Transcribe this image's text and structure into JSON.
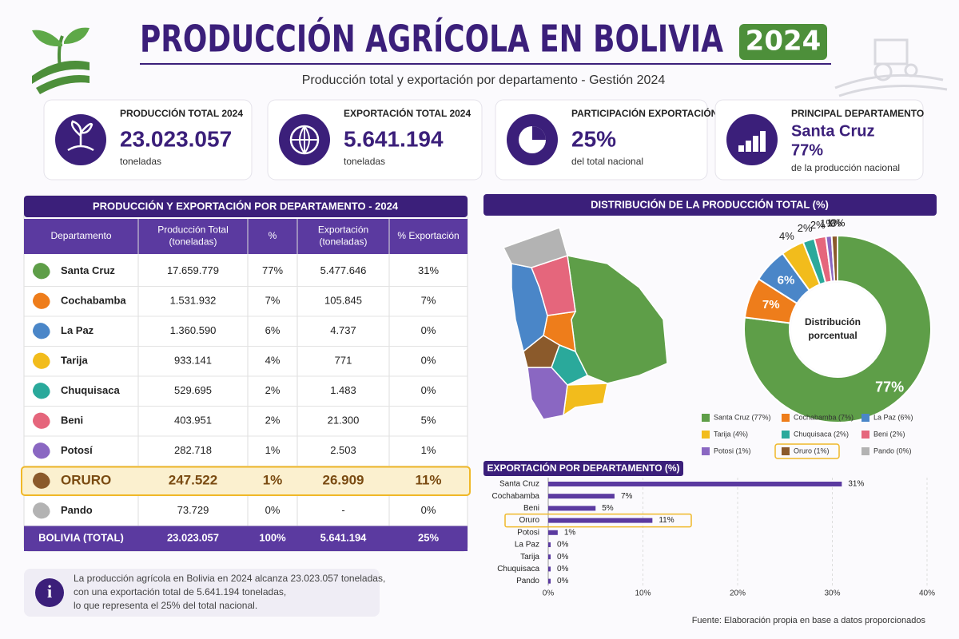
{
  "header": {
    "title": "PRODUCCIÓN AGRÍCOLA EN BOLIVIA",
    "year": "2024",
    "subtitle": "Producción total y exportación por departamento - Gestión 2024"
  },
  "kpis": [
    {
      "label": "PRODUCCIÓN TOTAL 2024",
      "value": "23.023.057",
      "unit": "toneladas"
    },
    {
      "label": "EXPORTACIÓN TOTAL 2024",
      "value": "5.641.194",
      "unit": "toneladas"
    },
    {
      "label": "PARTICIPACIÓN EXPORTACIÓN",
      "value": "25%",
      "unit": "del total nacional"
    },
    {
      "label": "PRINCIPAL DEPARTAMENTO",
      "value": "Santa Cruz",
      "value_2": "77%",
      "unit": "de la producción nacional"
    }
  ],
  "highlight": "Oruro",
  "table": {
    "title": "PRODUCCIÓN Y EXPORTACIÓN POR DEPARTAMENTO - 2024",
    "columns": [
      [
        "Departamento"
      ],
      [
        "Producción Total",
        "(toneladas)"
      ],
      [
        "%"
      ],
      [
        "Exportación",
        "(toneladas)"
      ],
      [
        "% Exportación"
      ]
    ],
    "rows": [
      [
        "Santa Cruz",
        "17.659.779",
        "77%",
        "5.477.646",
        "31%"
      ],
      [
        "Cochabamba",
        "1.531.932",
        "7%",
        "105.845",
        "7%"
      ],
      [
        "La Paz",
        "1.360.590",
        "6%",
        "4.737",
        "0%"
      ],
      [
        "Tarija",
        "933.141",
        "4%",
        "771",
        "0%"
      ],
      [
        "Chuquisaca",
        "529.695",
        "2%",
        "1.483",
        "0%"
      ],
      [
        "Beni",
        "403.951",
        "2%",
        "21.300",
        "5%"
      ],
      [
        "Potosí",
        "282.718",
        "1%",
        "2.503",
        "1%"
      ],
      [
        "ORURO",
        "247.522",
        "1%",
        "26.909",
        "11%"
      ],
      [
        "Pando",
        "73.729",
        "0%",
        "-",
        "0%"
      ]
    ],
    "total": [
      "BOLIVIA (TOTAL)",
      "23.023.057",
      "100%",
      "5.641.194",
      "25%"
    ]
  },
  "chart_data": [
    {
      "type": "pie",
      "title": "DISTRIBUCIÓN DE LA PRODUCCIÓN TOTAL (%)",
      "center_label": [
        "Distribución",
        "porcentual"
      ],
      "categories": [
        "Santa Cruz (77%)",
        "Cochabamba (7%)",
        "La Paz (6%)",
        "Tarija (4%)",
        "Chuquisaca (2%)",
        "Beni (2%)",
        "Potosi (1%)",
        "Oruro (1%)",
        "Pando (0%)"
      ],
      "values": [
        77,
        7,
        6,
        4,
        2,
        2,
        1,
        1,
        0
      ],
      "value_labels": [
        "77%",
        "7%",
        "6%",
        "4%",
        "2%",
        "2%",
        "1%",
        "1%",
        "0%"
      ],
      "colors": [
        "#5e9e48",
        "#ee7d1b",
        "#4a86c8",
        "#f2bc1c",
        "#2aa99b",
        "#e5667c",
        "#8a67c2",
        "#8b5a2b",
        "#b3b3b3"
      ]
    },
    {
      "type": "bar",
      "orientation": "horizontal",
      "title": "EXPORTACIÓN POR DEPARTAMENTO (%)",
      "categories": [
        "Santa Cruz",
        "Cochabamba",
        "Beni",
        "Oruro",
        "Potosi",
        "La Paz",
        "Tarija",
        "Chuquisaca",
        "Pando"
      ],
      "values": [
        31,
        7,
        5,
        11,
        1,
        0,
        0,
        0,
        0
      ],
      "value_labels": [
        "31%",
        "7%",
        "5%",
        "11%",
        "1%",
        "0%",
        "0%",
        "0%",
        "0%"
      ],
      "color": "#5b3aa0",
      "grid": true,
      "xlim": [
        0,
        40
      ],
      "xticks": [
        {
          "value": 0,
          "label": "0%"
        },
        {
          "value": 10,
          "label": "10%"
        },
        {
          "value": 20,
          "label": "20%"
        },
        {
          "value": 30,
          "label": "30%"
        },
        {
          "value": 40,
          "label": "40%"
        }
      ]
    }
  ],
  "info": [
    "La producción agrícola en Bolivia en 2024 alcanza 23.023.057 toneladas,",
    "con una exportación total de 5.641.194 toneladas,",
    "lo que representa el 25% del total nacional."
  ],
  "source": "Fuente: Elaboración propia en base a datos proporcionados"
}
